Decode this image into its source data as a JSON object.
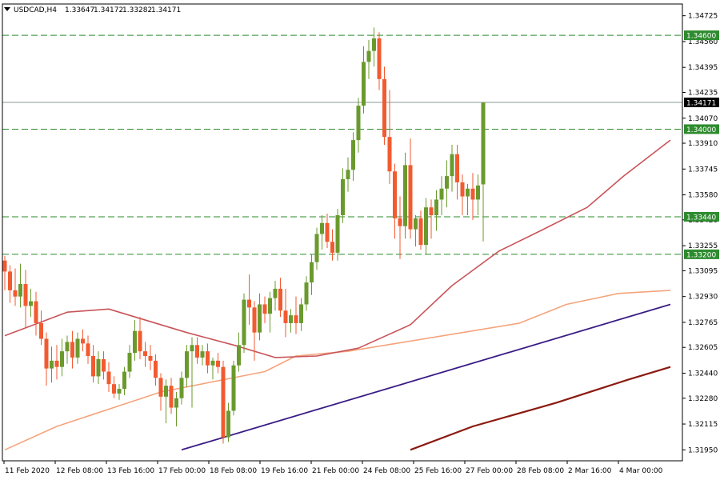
{
  "chart_data": {
    "type": "candlestick",
    "header": {
      "symbol": "USDCAD,H4",
      "open": "1.33647",
      "high": "1.34172",
      "low": "1.33282",
      "close": "1.34171"
    },
    "ylim": [
      1.3188,
      1.348
    ],
    "y_ticks": [
      "1.34725",
      "1.34560",
      "1.34395",
      "1.34235",
      "1.34070",
      "1.33910",
      "1.33745",
      "1.33580",
      "1.33420",
      "1.33255",
      "1.33095",
      "1.32930",
      "1.32765",
      "1.32605",
      "1.32440",
      "1.32280",
      "1.32115",
      "1.31950"
    ],
    "x_ticks": [
      "11 Feb 2020",
      "12 Feb 08:00",
      "13 Feb 16:00",
      "17 Feb 00:00",
      "18 Feb 08:00",
      "19 Feb 16:00",
      "21 Feb 00:00",
      "24 Feb 08:00",
      "25 Feb 16:00",
      "27 Feb 00:00",
      "28 Feb 08:00",
      "2 Mar 16:00",
      "4 Mar 00:00"
    ],
    "levels": [
      {
        "label": "1.34600",
        "value": 1.346
      },
      {
        "label": "1.34000",
        "value": 1.34
      },
      {
        "label": "1.33440",
        "value": 1.3344
      },
      {
        "label": "1.33200",
        "value": 1.332
      }
    ],
    "current_price": {
      "label": "1.34171",
      "value": 1.34171
    },
    "candles": [
      {
        "o": 1.3316,
        "h": 1.3319,
        "l": 1.3297,
        "c": 1.3309
      },
      {
        "o": 1.3309,
        "h": 1.3313,
        "l": 1.3289,
        "c": 1.3297
      },
      {
        "o": 1.3297,
        "h": 1.3311,
        "l": 1.3287,
        "c": 1.3293
      },
      {
        "o": 1.3293,
        "h": 1.3314,
        "l": 1.3286,
        "c": 1.3301
      },
      {
        "o": 1.3301,
        "h": 1.331,
        "l": 1.3273,
        "c": 1.3287
      },
      {
        "o": 1.3287,
        "h": 1.3298,
        "l": 1.328,
        "c": 1.329
      },
      {
        "o": 1.329,
        "h": 1.3296,
        "l": 1.3268,
        "c": 1.3276
      },
      {
        "o": 1.3276,
        "h": 1.3284,
        "l": 1.3262,
        "c": 1.3266
      },
      {
        "o": 1.3266,
        "h": 1.327,
        "l": 1.3236,
        "c": 1.3247
      },
      {
        "o": 1.3247,
        "h": 1.3261,
        "l": 1.3238,
        "c": 1.3252
      },
      {
        "o": 1.3252,
        "h": 1.3262,
        "l": 1.324,
        "c": 1.3248
      },
      {
        "o": 1.3248,
        "h": 1.3266,
        "l": 1.3242,
        "c": 1.3258
      },
      {
        "o": 1.3258,
        "h": 1.3268,
        "l": 1.325,
        "c": 1.3264
      },
      {
        "o": 1.3264,
        "h": 1.3271,
        "l": 1.3247,
        "c": 1.3254
      },
      {
        "o": 1.3254,
        "h": 1.327,
        "l": 1.325,
        "c": 1.3266
      },
      {
        "o": 1.3266,
        "h": 1.3272,
        "l": 1.3258,
        "c": 1.3263
      },
      {
        "o": 1.3263,
        "h": 1.3268,
        "l": 1.325,
        "c": 1.3255
      },
      {
        "o": 1.3255,
        "h": 1.3262,
        "l": 1.3238,
        "c": 1.3242
      },
      {
        "o": 1.3242,
        "h": 1.3258,
        "l": 1.3237,
        "c": 1.3253
      },
      {
        "o": 1.3253,
        "h": 1.3258,
        "l": 1.324,
        "c": 1.3245
      },
      {
        "o": 1.3245,
        "h": 1.3251,
        "l": 1.3232,
        "c": 1.3237
      },
      {
        "o": 1.3237,
        "h": 1.3242,
        "l": 1.3228,
        "c": 1.3231
      },
      {
        "o": 1.3231,
        "h": 1.3237,
        "l": 1.3227,
        "c": 1.3234
      },
      {
        "o": 1.3234,
        "h": 1.3248,
        "l": 1.323,
        "c": 1.3245
      },
      {
        "o": 1.3245,
        "h": 1.3262,
        "l": 1.3241,
        "c": 1.3257
      },
      {
        "o": 1.3257,
        "h": 1.3278,
        "l": 1.3252,
        "c": 1.3271
      },
      {
        "o": 1.3271,
        "h": 1.328,
        "l": 1.3253,
        "c": 1.3258
      },
      {
        "o": 1.3258,
        "h": 1.3264,
        "l": 1.3248,
        "c": 1.3255
      },
      {
        "o": 1.3255,
        "h": 1.3262,
        "l": 1.3246,
        "c": 1.3252
      },
      {
        "o": 1.3252,
        "h": 1.3256,
        "l": 1.3236,
        "c": 1.3241
      },
      {
        "o": 1.3241,
        "h": 1.3244,
        "l": 1.322,
        "c": 1.3229
      },
      {
        "o": 1.3229,
        "h": 1.324,
        "l": 1.3212,
        "c": 1.3236
      },
      {
        "o": 1.3236,
        "h": 1.3241,
        "l": 1.3218,
        "c": 1.3222
      },
      {
        "o": 1.3222,
        "h": 1.3232,
        "l": 1.321,
        "c": 1.3228
      },
      {
        "o": 1.3228,
        "h": 1.3245,
        "l": 1.3224,
        "c": 1.3241
      },
      {
        "o": 1.3241,
        "h": 1.3262,
        "l": 1.3235,
        "c": 1.3258
      },
      {
        "o": 1.3258,
        "h": 1.3267,
        "l": 1.3222,
        "c": 1.3262
      },
      {
        "o": 1.3262,
        "h": 1.3267,
        "l": 1.325,
        "c": 1.3254
      },
      {
        "o": 1.3254,
        "h": 1.3262,
        "l": 1.3249,
        "c": 1.3258
      },
      {
        "o": 1.3258,
        "h": 1.3263,
        "l": 1.3244,
        "c": 1.3249
      },
      {
        "o": 1.3249,
        "h": 1.3254,
        "l": 1.324,
        "c": 1.3252
      },
      {
        "o": 1.3252,
        "h": 1.3257,
        "l": 1.3244,
        "c": 1.3248
      },
      {
        "o": 1.3248,
        "h": 1.3252,
        "l": 1.3199,
        "c": 1.3203
      },
      {
        "o": 1.3203,
        "h": 1.3225,
        "l": 1.32,
        "c": 1.322
      },
      {
        "o": 1.322,
        "h": 1.3252,
        "l": 1.3217,
        "c": 1.3249
      },
      {
        "o": 1.3249,
        "h": 1.327,
        "l": 1.3245,
        "c": 1.3262
      },
      {
        "o": 1.3262,
        "h": 1.3295,
        "l": 1.3257,
        "c": 1.3291
      },
      {
        "o": 1.3291,
        "h": 1.3307,
        "l": 1.3275,
        "c": 1.3286
      },
      {
        "o": 1.3286,
        "h": 1.329,
        "l": 1.3252,
        "c": 1.327
      },
      {
        "o": 1.327,
        "h": 1.3295,
        "l": 1.3265,
        "c": 1.3288
      },
      {
        "o": 1.3288,
        "h": 1.3293,
        "l": 1.3276,
        "c": 1.3282
      },
      {
        "o": 1.3282,
        "h": 1.3296,
        "l": 1.327,
        "c": 1.3292
      },
      {
        "o": 1.3292,
        "h": 1.3303,
        "l": 1.3284,
        "c": 1.3298
      },
      {
        "o": 1.3298,
        "h": 1.3305,
        "l": 1.328,
        "c": 1.3284
      },
      {
        "o": 1.3284,
        "h": 1.3298,
        "l": 1.3267,
        "c": 1.3276
      },
      {
        "o": 1.3276,
        "h": 1.3285,
        "l": 1.327,
        "c": 1.3281
      },
      {
        "o": 1.3281,
        "h": 1.3293,
        "l": 1.3269,
        "c": 1.3276
      },
      {
        "o": 1.3276,
        "h": 1.3292,
        "l": 1.3271,
        "c": 1.3288
      },
      {
        "o": 1.3288,
        "h": 1.3306,
        "l": 1.3284,
        "c": 1.3302
      },
      {
        "o": 1.3302,
        "h": 1.332,
        "l": 1.3294,
        "c": 1.3315
      },
      {
        "o": 1.3315,
        "h": 1.3337,
        "l": 1.331,
        "c": 1.3333
      },
      {
        "o": 1.3333,
        "h": 1.3345,
        "l": 1.3323,
        "c": 1.334
      },
      {
        "o": 1.334,
        "h": 1.3346,
        "l": 1.3324,
        "c": 1.3328
      },
      {
        "o": 1.3328,
        "h": 1.3336,
        "l": 1.3316,
        "c": 1.3321
      },
      {
        "o": 1.3321,
        "h": 1.3349,
        "l": 1.3316,
        "c": 1.3345
      },
      {
        "o": 1.3345,
        "h": 1.3375,
        "l": 1.334,
        "c": 1.3368
      },
      {
        "o": 1.3368,
        "h": 1.3382,
        "l": 1.336,
        "c": 1.3374
      },
      {
        "o": 1.3374,
        "h": 1.3398,
        "l": 1.3367,
        "c": 1.3393
      },
      {
        "o": 1.3393,
        "h": 1.342,
        "l": 1.3385,
        "c": 1.3415
      },
      {
        "o": 1.3415,
        "h": 1.3453,
        "l": 1.341,
        "c": 1.3443
      },
      {
        "o": 1.3443,
        "h": 1.3457,
        "l": 1.3432,
        "c": 1.345
      },
      {
        "o": 1.345,
        "h": 1.3465,
        "l": 1.344,
        "c": 1.3458
      },
      {
        "o": 1.3458,
        "h": 1.3462,
        "l": 1.3425,
        "c": 1.3432
      },
      {
        "o": 1.3432,
        "h": 1.344,
        "l": 1.339,
        "c": 1.3395
      },
      {
        "o": 1.3395,
        "h": 1.3425,
        "l": 1.3365,
        "c": 1.3373
      },
      {
        "o": 1.3373,
        "h": 1.3378,
        "l": 1.333,
        "c": 1.3343
      },
      {
        "o": 1.3343,
        "h": 1.3357,
        "l": 1.3317,
        "c": 1.3338
      },
      {
        "o": 1.3338,
        "h": 1.3385,
        "l": 1.333,
        "c": 1.3377
      },
      {
        "o": 1.3377,
        "h": 1.3394,
        "l": 1.333,
        "c": 1.3336
      },
      {
        "o": 1.3336,
        "h": 1.3345,
        "l": 1.3325,
        "c": 1.3343
      },
      {
        "o": 1.3343,
        "h": 1.3348,
        "l": 1.3323,
        "c": 1.3326
      },
      {
        "o": 1.3326,
        "h": 1.3356,
        "l": 1.332,
        "c": 1.335
      },
      {
        "o": 1.335,
        "h": 1.3355,
        "l": 1.333,
        "c": 1.3345
      },
      {
        "o": 1.3345,
        "h": 1.3361,
        "l": 1.3335,
        "c": 1.3355
      },
      {
        "o": 1.3355,
        "h": 1.337,
        "l": 1.3345,
        "c": 1.3362
      },
      {
        "o": 1.3362,
        "h": 1.338,
        "l": 1.335,
        "c": 1.337
      },
      {
        "o": 1.337,
        "h": 1.339,
        "l": 1.336,
        "c": 1.3384
      },
      {
        "o": 1.3384,
        "h": 1.339,
        "l": 1.3355,
        "c": 1.3366
      },
      {
        "o": 1.3366,
        "h": 1.3371,
        "l": 1.3345,
        "c": 1.3357
      },
      {
        "o": 1.3357,
        "h": 1.3365,
        "l": 1.3345,
        "c": 1.3362
      },
      {
        "o": 1.3362,
        "h": 1.3372,
        "l": 1.3342,
        "c": 1.3355
      },
      {
        "o": 1.3355,
        "h": 1.3371,
        "l": 1.3345,
        "c": 1.3364
      },
      {
        "o": 1.33647,
        "h": 1.34172,
        "l": 1.33282,
        "c": 1.34171
      }
    ],
    "ma_fast": [
      [
        0,
        1.3268
      ],
      [
        12,
        1.3283
      ],
      [
        20,
        1.3285
      ],
      [
        35,
        1.327
      ],
      [
        44,
        1.3262
      ],
      [
        52,
        1.3254
      ],
      [
        60,
        1.3255
      ],
      [
        68,
        1.326
      ],
      [
        78,
        1.3275
      ],
      [
        86,
        1.33
      ],
      [
        95,
        1.3322
      ],
      [
        103,
        1.3335
      ],
      [
        112,
        1.335
      ],
      [
        119,
        1.337
      ],
      [
        128,
        1.3393
      ]
    ],
    "ma_slow": [
      [
        0,
        1.3195
      ],
      [
        10,
        1.321
      ],
      [
        30,
        1.3232
      ],
      [
        50,
        1.3245
      ],
      [
        56,
        1.3255
      ],
      [
        66,
        1.3258
      ],
      [
        77,
        1.3264
      ],
      [
        88,
        1.327
      ],
      [
        99,
        1.3276
      ],
      [
        108,
        1.3288
      ],
      [
        118,
        1.3295
      ],
      [
        128,
        1.3297
      ]
    ],
    "trend_line": [
      [
        34,
        1.3195
      ],
      [
        128,
        1.3288
      ]
    ],
    "ma_long": [
      [
        78,
        1.3195
      ],
      [
        90,
        1.321
      ],
      [
        106,
        1.3225
      ],
      [
        120,
        1.324
      ],
      [
        128,
        1.3248
      ]
    ],
    "colors": {
      "bull": "#6a9a2e",
      "bear": "#f25a30",
      "level_line": "#2e8b2e",
      "level_label_bg": "#2e8b2e",
      "price_label_bg": "#000000",
      "ma_fast": "#c8545a",
      "ma_slow": "#f4a47c",
      "trend_line": "#3a1c84",
      "ma_long": "#8b1a10",
      "grid": "#c0c0c0"
    }
  }
}
